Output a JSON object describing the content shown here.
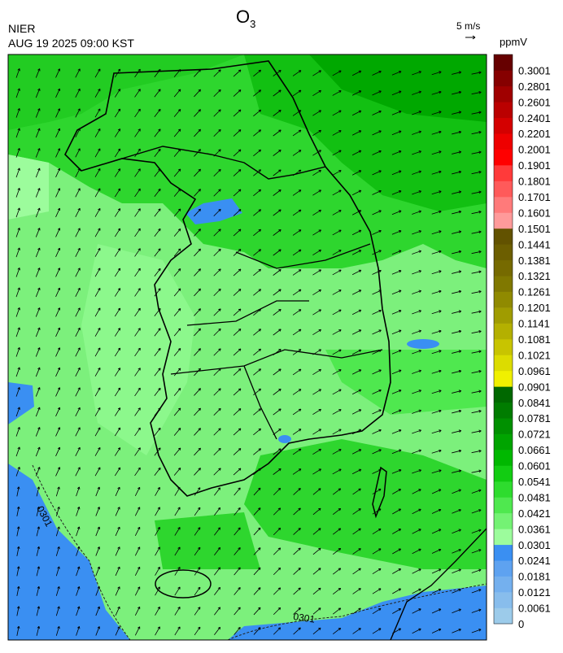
{
  "header": {
    "title": {
      "main": "O",
      "subscript": "3"
    },
    "agency": "NIER",
    "datetime": "AUG 19 2025 09:00 KST",
    "wind_scale": "5 m/s"
  },
  "map": {
    "contour_labels": [
      "0301",
      "0301"
    ]
  },
  "colorbar": {
    "unit": "ppmV",
    "ticks": [
      0,
      0.0061,
      0.0121,
      0.0181,
      0.0241,
      0.0301,
      0.0361,
      0.0421,
      0.0481,
      0.0541,
      0.0601,
      0.0661,
      0.0721,
      0.0781,
      0.0841,
      0.0901,
      0.0961,
      0.1021,
      0.1081,
      0.1141,
      0.1201,
      0.1261,
      0.1321,
      0.1381,
      0.1441,
      0.1501,
      0.1601,
      0.1701,
      0.1801,
      0.1901,
      0.2001,
      0.2201,
      0.2401,
      0.2601,
      0.2801,
      0.3001
    ],
    "colors": [
      "#9ccbea",
      "#88bdec",
      "#74b0ee",
      "#5ea2f0",
      "#3a8ff2",
      "#9cfc9c",
      "#74f274",
      "#4fe84f",
      "#2edc2e",
      "#12cc12",
      "#00b800",
      "#00a400",
      "#009000",
      "#007c00",
      "#006800",
      "#f0f000",
      "#dcdc00",
      "#c8c400",
      "#b4b000",
      "#a09c00",
      "#908a00",
      "#807800",
      "#766a00",
      "#6c5e00",
      "#625200",
      "#ff9a9a",
      "#ff7a7a",
      "#ff5a5a",
      "#ff3a3a",
      "#ff0000",
      "#ee0000",
      "#d40000",
      "#ba0000",
      "#a00000",
      "#860000",
      "#660000"
    ]
  }
}
